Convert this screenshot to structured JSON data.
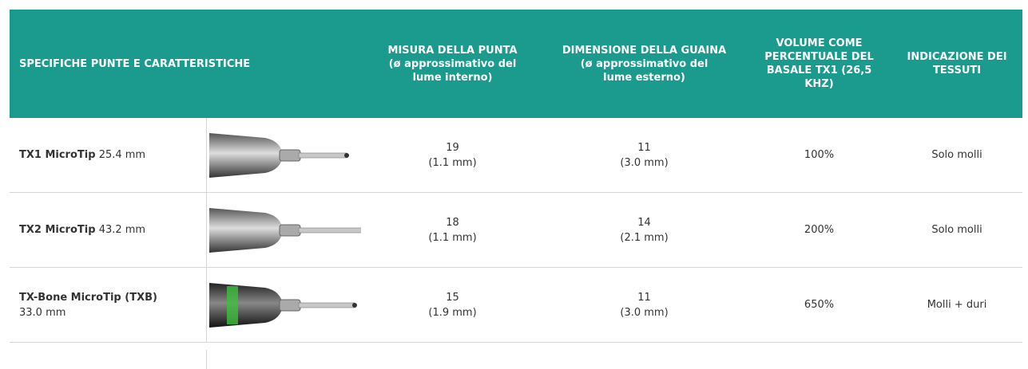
{
  "table": {
    "header": [
      {
        "title": "SPECIFICHE PUNTE E CARATTERISTICHE"
      },
      {
        "title": "MISURA DELLA PUNTA",
        "subtitle": "(ø approssimativo del lume interno)"
      },
      {
        "title": "DIMENSIONE DELLA GUAINA",
        "subtitle": "(ø approssimativo del lume esterno)"
      },
      {
        "title": "VOLUME COME PERCENTUALE DEL BASALE TX1 (26,5 KHZ)"
      },
      {
        "title": "INDICAZIONE DEI TESSUTI"
      }
    ],
    "rows": [
      {
        "name": "TX1 MicroTip",
        "length": "25.4 mm",
        "tip": {
          "gauge": "19",
          "diameter": "(1.1 mm)"
        },
        "sheath": {
          "gauge": "11",
          "diameter": "(3.0 mm)"
        },
        "volume": "100%",
        "tissue": "Solo molli"
      },
      {
        "name": "TX2 MicroTip",
        "length": "43.2 mm",
        "tip": {
          "gauge": "18",
          "diameter": "(1.1 mm)"
        },
        "sheath": {
          "gauge": "14",
          "diameter": "(2.1 mm)"
        },
        "volume": "200%",
        "tissue": "Solo molli"
      },
      {
        "name": "TX-Bone MicroTip (TXB)",
        "length": "33.0 mm",
        "tip": {
          "gauge": "15",
          "diameter": "(1.9 mm)"
        },
        "sheath": {
          "gauge": "11",
          "diameter": "(3.0 mm)"
        },
        "volume": "650%",
        "tissue": "Molli + duri"
      }
    ]
  }
}
